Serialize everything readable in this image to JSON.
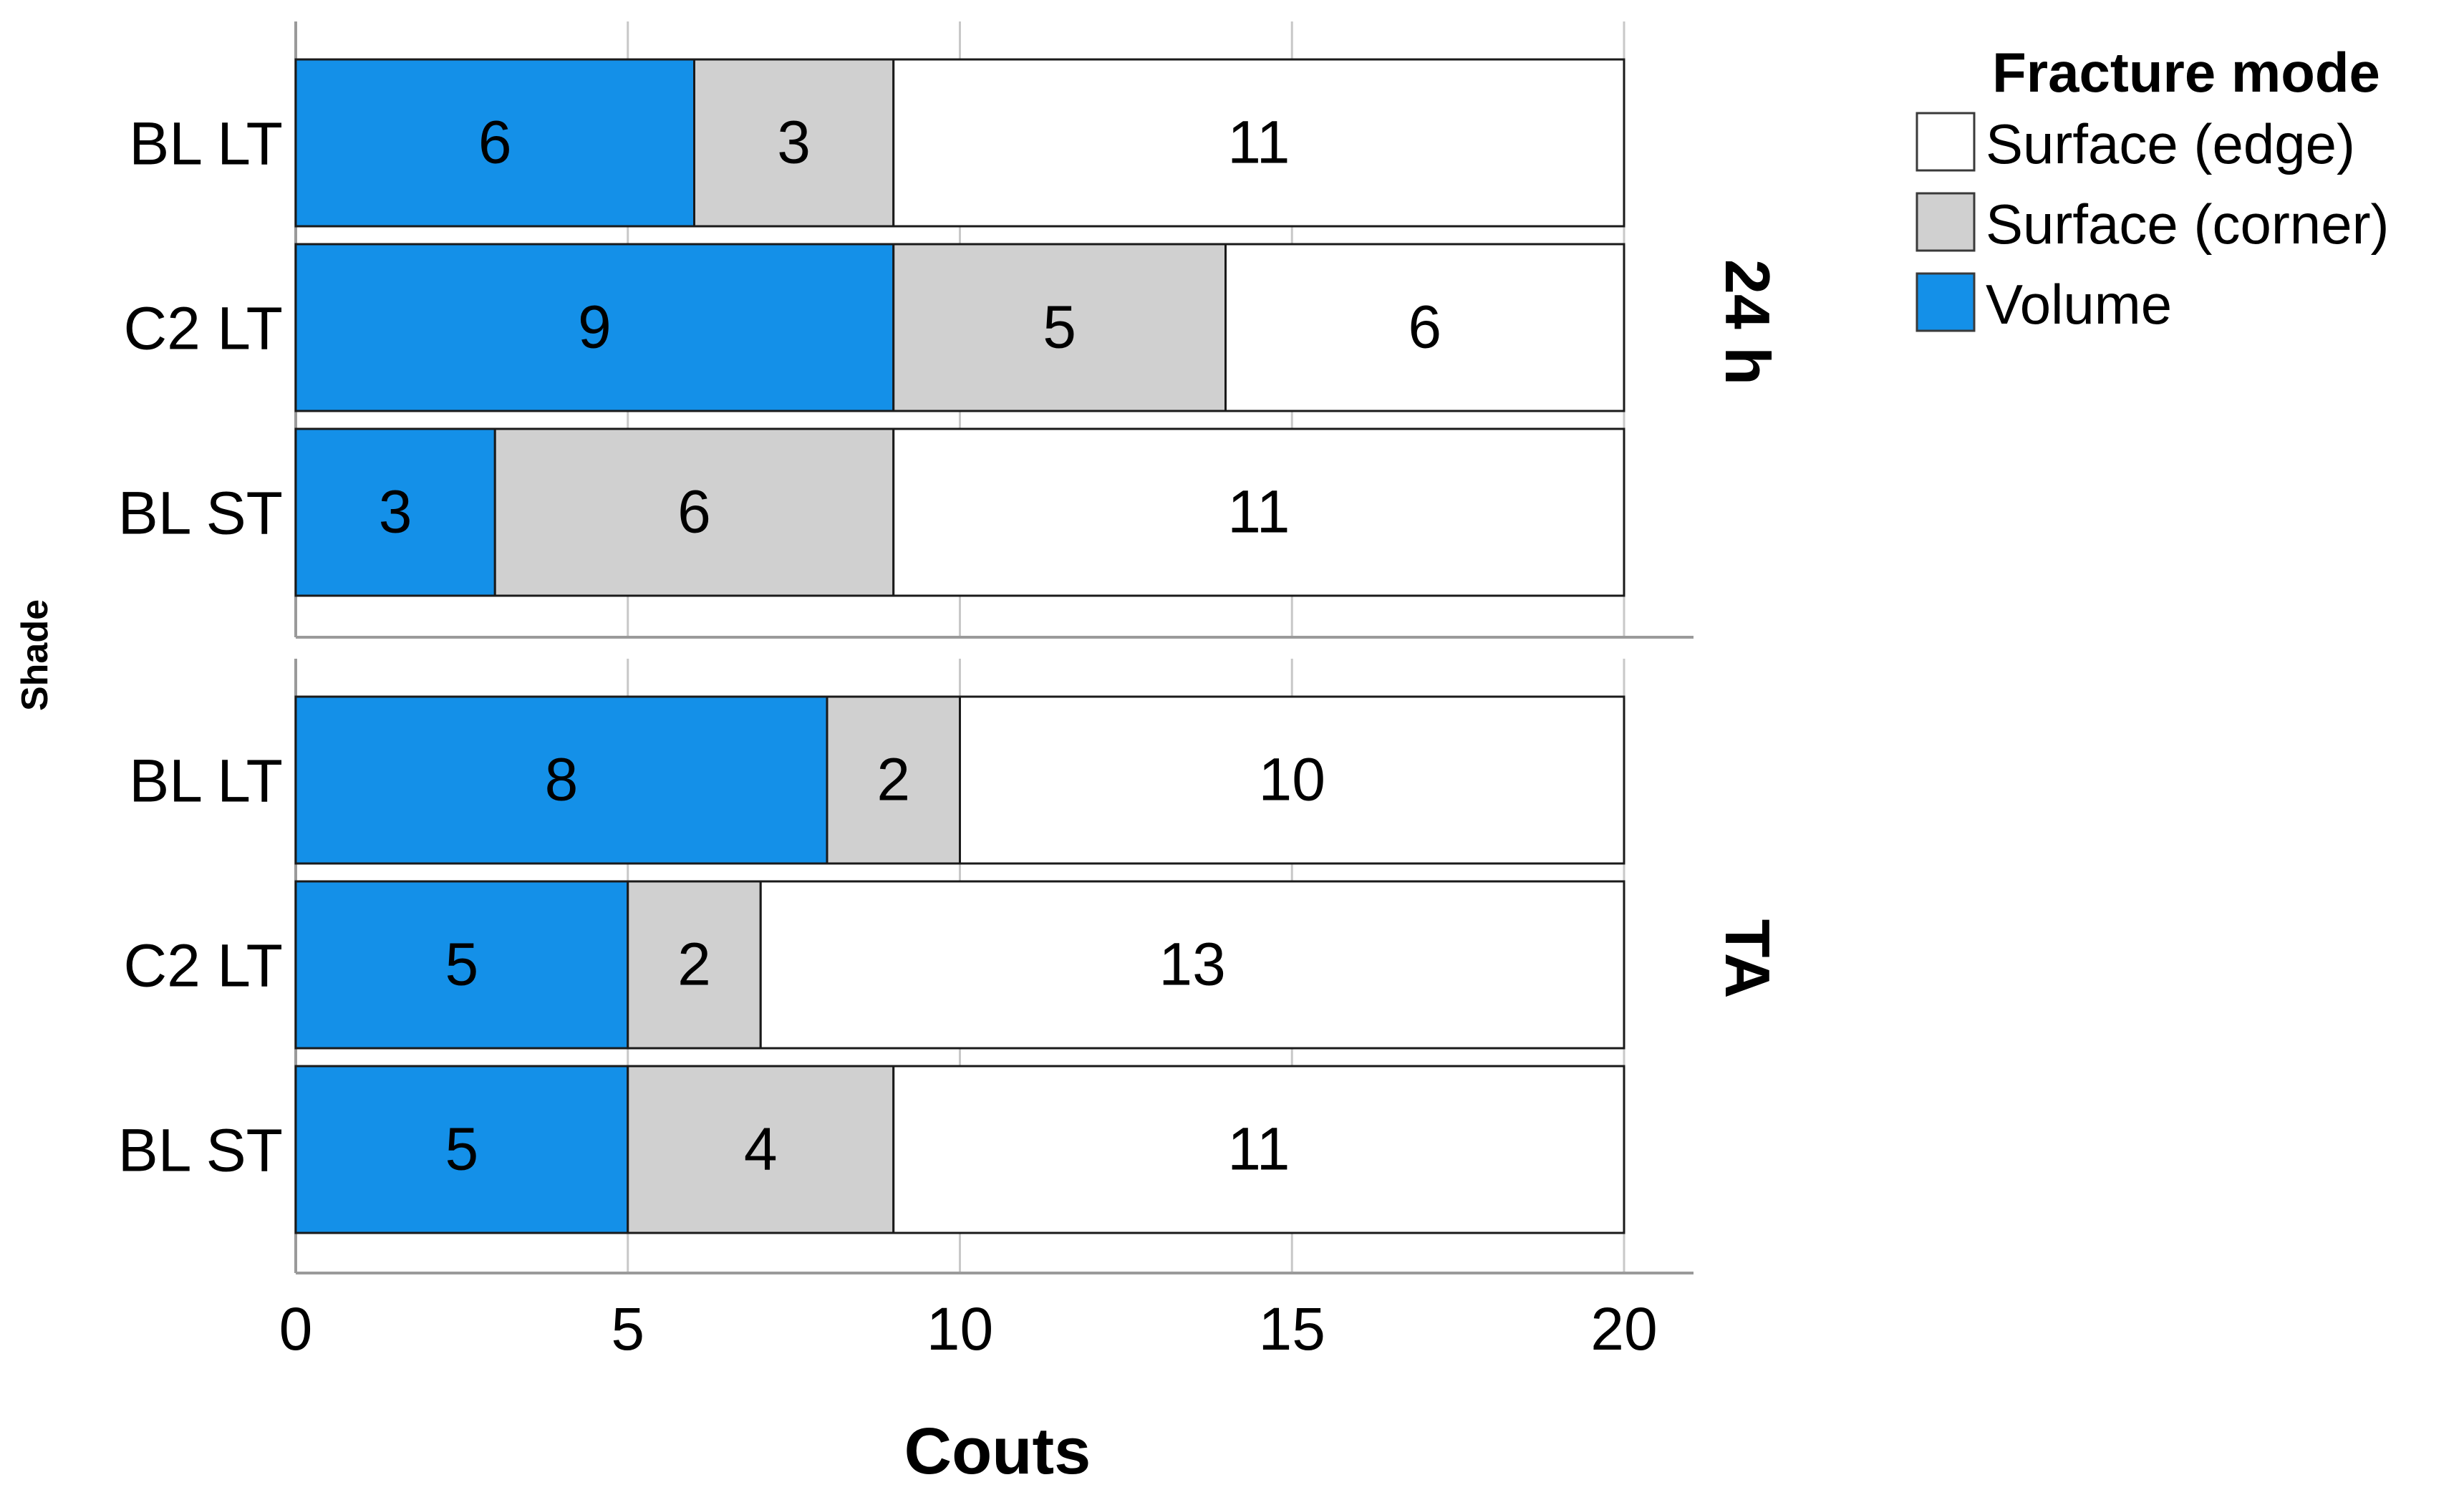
{
  "chart_data": {
    "type": "bar",
    "orientation": "horizontal",
    "stacked": true,
    "xlabel": "Couts",
    "ylabel": "Shade",
    "xlim": [
      0,
      20
    ],
    "xticks": [
      0,
      5,
      10,
      15,
      20
    ],
    "grid": true,
    "legend_title": "Fracture mode",
    "legend_position": "top-right",
    "legend": [
      {
        "name": "Surface (edge)",
        "color": "#ffffff"
      },
      {
        "name": "Surface (corner)",
        "color": "#d0d0d0"
      },
      {
        "name": "Volume",
        "color": "#1490e8"
      }
    ],
    "series_order": [
      "Volume",
      "Surface (corner)",
      "Surface (edge)"
    ],
    "panels": [
      {
        "label": "24 h",
        "categories": [
          "BL LT",
          "C2 LT",
          "BL ST"
        ],
        "series": [
          {
            "name": "Volume",
            "color": "#1490e8",
            "values": [
              6,
              9,
              3
            ]
          },
          {
            "name": "Surface (corner)",
            "color": "#d0d0d0",
            "values": [
              3,
              5,
              6
            ]
          },
          {
            "name": "Surface (edge)",
            "color": "#ffffff",
            "values": [
              11,
              6,
              11
            ]
          }
        ]
      },
      {
        "label": "TA",
        "categories": [
          "BL LT",
          "C2 LT",
          "BL ST"
        ],
        "series": [
          {
            "name": "Volume",
            "color": "#1490e8",
            "values": [
              8,
              5,
              5
            ]
          },
          {
            "name": "Surface (corner)",
            "color": "#d0d0d0",
            "values": [
              2,
              2,
              4
            ]
          },
          {
            "name": "Surface (edge)",
            "color": "#ffffff",
            "values": [
              10,
              13,
              11
            ]
          }
        ]
      }
    ]
  }
}
